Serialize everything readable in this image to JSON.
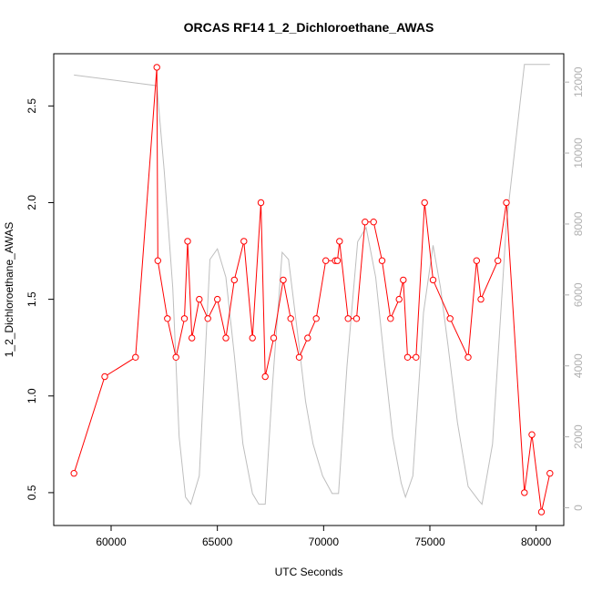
{
  "chart_data": {
    "type": "line",
    "title": "ORCAS RF14 1_2_Dichloroethane_AWAS",
    "xlabel": "UTC Seconds",
    "ylabel": "1_2_Dichloroethane_AWAS",
    "xlim": [
      57300,
      81300
    ],
    "ylim": [
      0.33,
      2.77
    ],
    "y2lim": [
      -500,
      12800
    ],
    "x_ticks": [
      60000,
      65000,
      70000,
      75000,
      80000
    ],
    "y_ticks": [
      0.5,
      1.0,
      1.5,
      2.0,
      2.5
    ],
    "y2_ticks": [
      0,
      2000,
      4000,
      6000,
      8000,
      10000,
      12000
    ],
    "x_tick_labels": [
      "60000",
      "65000",
      "70000",
      "75000",
      "80000"
    ],
    "y_tick_labels": [
      "0.5",
      "1.0",
      "1.5",
      "2.0",
      "2.5"
    ],
    "y2_tick_labels": [
      "0",
      "2000",
      "4000",
      "6000",
      "8000",
      "10000",
      "12000"
    ],
    "colors": {
      "series": "#ff0000",
      "altitude": "#bebebe"
    },
    "series": [
      {
        "marker": "open-circle",
        "x": [
          58250,
          59700,
          61150,
          62150,
          62200,
          62650,
          63050,
          63450,
          63600,
          63800,
          64150,
          64550,
          65000,
          65400,
          65800,
          66250,
          66650,
          67050,
          67250,
          67650,
          68100,
          68450,
          68850,
          69250,
          69650,
          70100,
          70550,
          70650,
          70750,
          71150,
          71550,
          71950,
          72350,
          72750,
          73150,
          73550,
          73750,
          73950,
          74350,
          74750,
          75150,
          75950,
          76800,
          77200,
          77400,
          78200,
          78600,
          79450,
          79800,
          80250,
          80650
        ],
        "y": [
          0.6,
          1.1,
          1.2,
          2.7,
          1.7,
          1.4,
          1.2,
          1.4,
          1.8,
          1.3,
          1.5,
          1.4,
          1.5,
          1.3,
          1.6,
          1.8,
          1.3,
          2.0,
          1.1,
          1.3,
          1.6,
          1.4,
          1.2,
          1.3,
          1.4,
          1.7,
          1.7,
          1.7,
          1.8,
          1.4,
          1.4,
          1.9,
          1.9,
          1.7,
          1.4,
          1.5,
          1.6,
          1.2,
          1.2,
          2.0,
          1.6,
          1.4,
          1.2,
          1.7,
          1.5,
          1.7,
          2.0,
          0.5,
          0.8,
          0.4,
          0.6
        ]
      },
      {
        "axis": "right",
        "x": [
          58250,
          62150,
          62500,
          62900,
          63200,
          63500,
          63750,
          64150,
          64650,
          65000,
          65400,
          65800,
          66200,
          66650,
          66950,
          67250,
          67600,
          68050,
          68350,
          68800,
          69150,
          69500,
          69950,
          70400,
          70700,
          71100,
          71600,
          72000,
          72450,
          72850,
          73250,
          73650,
          73850,
          74200,
          74700,
          75150,
          75500,
          75850,
          76300,
          76800,
          77300,
          77450,
          77950,
          78600,
          79450,
          80650
        ],
        "y": [
          12200,
          11900,
          9500,
          6200,
          2000,
          300,
          100,
          900,
          7000,
          7300,
          6500,
          4300,
          1800,
          400,
          100,
          100,
          3500,
          7200,
          7000,
          4800,
          3000,
          1800,
          900,
          400,
          400,
          4000,
          7500,
          7900,
          6500,
          4200,
          2000,
          700,
          300,
          900,
          5500,
          7400,
          6200,
          4600,
          2400,
          600,
          200,
          100,
          1800,
          8000,
          12500,
          12500
        ]
      }
    ]
  }
}
